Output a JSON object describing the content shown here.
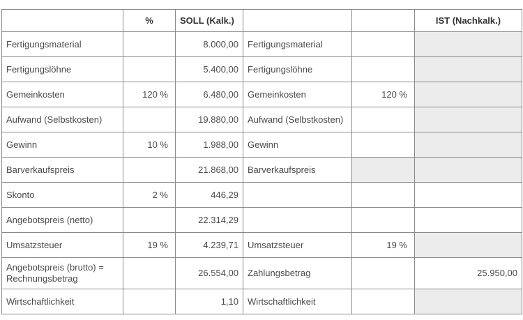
{
  "table": {
    "headers": {
      "percent": "%",
      "soll": "SOLL (Kalk.)",
      "ist": "IST (Nachkalk.)"
    },
    "rows": [
      [
        "Fertigungsmaterial",
        null,
        "8.000,00",
        "Fertigungsmaterial",
        null,
        null
      ],
      [
        "Fertigungslöhne",
        null,
        "5.400,00",
        "Fertigungslöhne",
        null,
        null
      ],
      [
        "Gemeinkosten",
        "120 %",
        "6.480,00",
        "Gemeinkosten",
        "120 %",
        null
      ],
      [
        "Aufwand (Selbstkosten)",
        null,
        "19.880,00",
        "Aufwand (Selbstkosten)",
        null,
        null
      ],
      [
        "Gewinn",
        "10 %",
        "1.988,00",
        "Gewinn",
        null,
        null
      ],
      [
        "Barverkaufspreis",
        null,
        "21.868,00",
        "Barverkaufspreis",
        null,
        null
      ],
      [
        "Skonto",
        "2 %",
        "446,29",
        null,
        null,
        null
      ],
      [
        "Angebotspreis (netto)",
        null,
        "22.314,29",
        null,
        null,
        null
      ],
      [
        "Umsatzsteuer",
        "19 %",
        "4.239,71",
        "Umsatzsteuer",
        "19 %",
        null
      ],
      [
        "Angebotspreis (brutto) = Rechnungsbetrag",
        null,
        "26.554,00",
        "Zahlungsbetrag",
        null,
        "25.950,00"
      ],
      [
        "Wirtschaftlichkeit",
        null,
        "1,10",
        "Wirtschaftlichkeit",
        null,
        null
      ]
    ]
  }
}
